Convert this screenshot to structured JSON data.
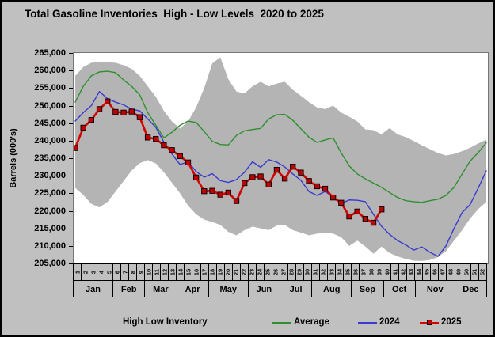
{
  "window": {
    "kind": "chart-image"
  },
  "legend": {
    "band_label": "High Low Inventory",
    "avg_label": "Average",
    "y2024_label": "2024",
    "y2025_label": "2025"
  },
  "chart_data": {
    "type": "line",
    "title": "Total Gasoline Inventories  High - Low Levels  2020 to 2025",
    "xlabel": "",
    "ylabel": "Barrels (000's)",
    "ylim": [
      205000,
      265000
    ],
    "ytick_step": 5000,
    "ytick_labels": [
      "265,000",
      "260,000",
      "255,000",
      "250,000",
      "245,000",
      "240,000",
      "235,000",
      "230,000",
      "225,000",
      "220,000",
      "215,000",
      "210,000",
      "205,000"
    ],
    "grid": false,
    "legend_position": "bottom",
    "background_color": "#c0c0c0",
    "plot_background_color": "#ffffff",
    "weeks": [
      "1",
      "2",
      "3",
      "4",
      "5",
      "6",
      "7",
      "8",
      "9",
      "10",
      "11",
      "12",
      "13",
      "14",
      "15",
      "16",
      "17",
      "18",
      "19",
      "20",
      "21",
      "22",
      "23",
      "24",
      "25",
      "26",
      "27",
      "28",
      "29",
      "30",
      "31",
      "32",
      "33",
      "34",
      "35",
      "36",
      "37",
      "38",
      "39",
      "40",
      "41",
      "42",
      "43",
      "44",
      "45",
      "46",
      "47",
      "48",
      "49",
      "50",
      "51",
      "52"
    ],
    "months": [
      {
        "label": "Jan",
        "weeks": 5
      },
      {
        "label": "Feb",
        "weeks": 4
      },
      {
        "label": "Mar",
        "weeks": 4
      },
      {
        "label": "Apr",
        "weeks": 4
      },
      {
        "label": "May",
        "weeks": 5
      },
      {
        "label": "Jun",
        "weeks": 4
      },
      {
        "label": "Jul",
        "weeks": 4
      },
      {
        "label": "Aug",
        "weeks": 5
      },
      {
        "label": "Sep",
        "weeks": 4
      },
      {
        "label": "Oct",
        "weeks": 4
      },
      {
        "label": "Nov",
        "weeks": 5
      },
      {
        "label": "Dec",
        "weeks": 4
      }
    ],
    "band": {
      "name": "High Low Inventory",
      "color": "#b4b4b4",
      "high": [
        258500,
        261000,
        262200,
        262400,
        262400,
        262200,
        261500,
        260500,
        258500,
        255500,
        252500,
        248500,
        245500,
        243500,
        245500,
        249500,
        255000,
        262000,
        263800,
        257500,
        254000,
        253500,
        255500,
        256800,
        255500,
        256300,
        256800,
        254500,
        252800,
        251000,
        249500,
        249000,
        250000,
        248000,
        246800,
        245500,
        243200,
        243000,
        241800,
        243600,
        241800,
        241000,
        239900,
        238700,
        237600,
        236500,
        235800,
        236200,
        237000,
        238000,
        239200,
        240300
      ],
      "low": [
        226500,
        224500,
        222000,
        221000,
        222500,
        225500,
        228500,
        231500,
        233600,
        234500,
        233500,
        231000,
        228000,
        225000,
        221500,
        219000,
        217500,
        216800,
        216000,
        214000,
        213000,
        214500,
        215500,
        215000,
        214500,
        215800,
        216000,
        214500,
        213800,
        213000,
        213500,
        213800,
        213500,
        212500,
        210000,
        211500,
        209800,
        207800,
        209800,
        208000,
        207000,
        206300,
        205800,
        205700,
        206000,
        206800,
        208500,
        211500,
        214500,
        217800,
        220500,
        222500
      ]
    },
    "series": [
      {
        "name": "Average",
        "color": "#2e8f2e",
        "width": 1.4,
        "values": [
          251000,
          255500,
          258500,
          259600,
          259800,
          259400,
          257300,
          255500,
          253100,
          248000,
          244400,
          240800,
          242400,
          244400,
          245600,
          245200,
          242600,
          239800,
          238900,
          238800,
          241500,
          242800,
          243200,
          243500,
          246200,
          247400,
          247500,
          245800,
          243400,
          241000,
          239500,
          240200,
          240800,
          236500,
          232800,
          230500,
          229100,
          227900,
          226700,
          225200,
          223800,
          222900,
          222600,
          222400,
          222900,
          223300,
          224400,
          226700,
          230500,
          234200,
          236600,
          239400
        ]
      },
      {
        "name": "2024",
        "color": "#3a3ad0",
        "width": 1.4,
        "values": [
          245600,
          248000,
          250000,
          254000,
          252000,
          251000,
          250200,
          249000,
          248500,
          246200,
          243800,
          239600,
          236200,
          233200,
          234000,
          231200,
          229600,
          230600,
          228600,
          228100,
          228900,
          231000,
          234000,
          232400,
          234600,
          233900,
          232500,
          230500,
          228700,
          225500,
          224400,
          225500,
          224000,
          222100,
          223100,
          223000,
          222600,
          219000,
          215600,
          213300,
          211500,
          210300,
          208800,
          209700,
          208200,
          207000,
          210000,
          215000,
          219500,
          221800,
          226500,
          231400
        ]
      },
      {
        "name": "2025",
        "color": "#d40000",
        "width": 2.6,
        "marker": "square",
        "marker_color": "#bf0000",
        "values": [
          237900,
          243700,
          245900,
          249000,
          251200,
          248200,
          248000,
          248300,
          246700,
          240900,
          240500,
          238700,
          237300,
          235600,
          233800,
          229500,
          225600,
          225700,
          224600,
          225200,
          222800,
          227900,
          229600,
          229800,
          227500,
          231700,
          229200,
          232600,
          230900,
          228500,
          227000,
          226300,
          223800,
          222300,
          218400,
          219800,
          217700,
          216600,
          220400
        ]
      }
    ]
  }
}
